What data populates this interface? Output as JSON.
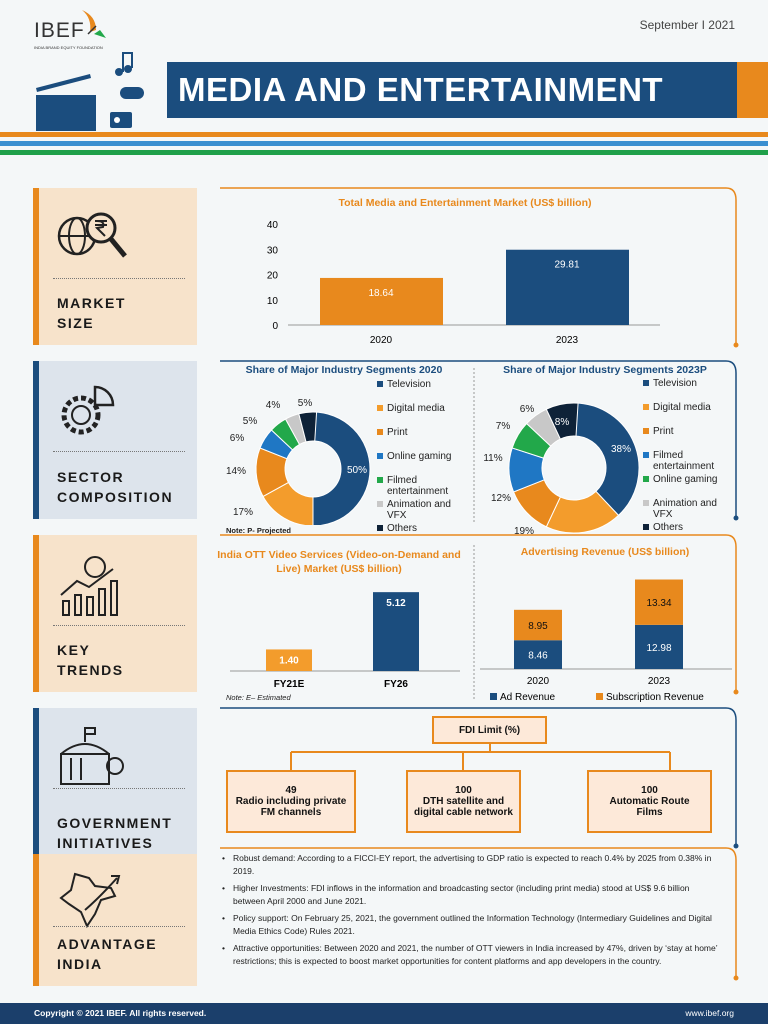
{
  "header": {
    "logo_text": "IBEF",
    "logo_subtext": "INDIA BRAND EQUITY FOUNDATION",
    "date": "September I 2021",
    "title": "MEDIA AND ENTERTAINMENT"
  },
  "colors": {
    "orange": "#e8891d",
    "navy": "#1b4d7e",
    "light_orange": "#f39c2c",
    "blue": "#1f77c4",
    "green": "#22a84a",
    "gray": "#c8c8c8",
    "dark": "#0e2238"
  },
  "sections": [
    {
      "label": "MARKET\nSIZE",
      "icon": "globe-magnifier-rupee-icon"
    },
    {
      "label": "SECTOR\nCOMPOSITION",
      "icon": "gear-pie-chart-icon"
    },
    {
      "label": "KEY\nTRENDS",
      "icon": "globe-bar-chart-icon"
    },
    {
      "label": "GOVERNMENT\nINITIATIVES",
      "icon": "government-building-icon"
    },
    {
      "label": "ADVANTAGE\nINDIA",
      "icon": "india-map-icon"
    }
  ],
  "chart_data": [
    {
      "type": "bar",
      "title": "Total Media and Entertainment Market (US$ billion)",
      "categories": [
        "2020",
        "2023"
      ],
      "values": [
        18.64,
        29.81
      ],
      "ylim": [
        0,
        40
      ],
      "yticks": [
        "0",
        "10",
        "20",
        "30",
        "40"
      ]
    },
    {
      "type": "pie",
      "title": "Share of Major Industry Segments 2020",
      "labels": [
        "Television",
        "Digital media",
        "Print",
        "Online gaming",
        "Filmed entertainment",
        "Animation and VFX",
        "Others"
      ],
      "values": [
        50,
        17,
        14,
        6,
        5,
        4,
        5
      ],
      "value_labels": [
        "50%",
        "17%",
        "14%",
        "6%",
        "5%",
        "4%",
        "5%"
      ],
      "note": "Note: P- Projected"
    },
    {
      "type": "pie",
      "title": "Share of Major Industry Segments 2023P",
      "labels": [
        "Television",
        "Digital media",
        "Print",
        "Filmed entertainment",
        "Online gaming",
        "Animation and VFX",
        "Others"
      ],
      "values": [
        38,
        19,
        12,
        11,
        7,
        6,
        8
      ],
      "value_labels": [
        "38%",
        "19%",
        "12%",
        "11%",
        "7%",
        "6%",
        "8%"
      ]
    },
    {
      "type": "bar",
      "title": "India OTT Video Services (Video-on-Demand and Live) Market (US$ billion)",
      "categories": [
        "FY21E",
        "FY26"
      ],
      "values": [
        1.4,
        5.12
      ],
      "value_labels": [
        "1.40",
        "5.12"
      ],
      "note": "Note: E– Estimated"
    },
    {
      "type": "bar",
      "stacked": true,
      "title": "Advertising Revenue (US$ billion)",
      "categories": [
        "2020",
        "2023"
      ],
      "series": [
        {
          "name": "Ad Revenue",
          "values": [
            8.46,
            12.98
          ],
          "value_labels": [
            "8.46",
            "12.98"
          ]
        },
        {
          "name": "Subscription Revenue",
          "values": [
            8.95,
            13.34
          ],
          "value_labels": [
            "8.95",
            "13.34"
          ]
        }
      ]
    }
  ],
  "fdi": {
    "title": "FDI Limit (%)",
    "boxes": [
      {
        "value": "49",
        "text": "Radio including private FM channels"
      },
      {
        "value": "100",
        "text": "DTH satellite and digital cable network"
      },
      {
        "value": "100",
        "text": "Automatic Route Films"
      }
    ]
  },
  "advantages": [
    "Robust demand: According to a FICCI-EY report, the advertising to GDP ratio is expected to reach 0.4% by 2025 from 0.38% in 2019.",
    "Higher Investments: FDI inflows in the information and broadcasting sector (including print media) stood at US$ 9.6 billion between April 2000 and June 2021.",
    "Policy support: On February 25, 2021, the government outlined the Information Technology (Intermediary Guidelines and Digital Media Ethics Code) Rules 2021.",
    "Attractive opportunities: Between 2020 and 2021, the number of OTT viewers in India increased by 47%, driven by ‘stay at home’ restrictions; this is expected to boost market opportunities for content platforms and app developers in the country."
  ],
  "footer": {
    "copyright": "Copyright © 2021 IBEF. All rights reserved.",
    "url": "www.ibef.org"
  }
}
